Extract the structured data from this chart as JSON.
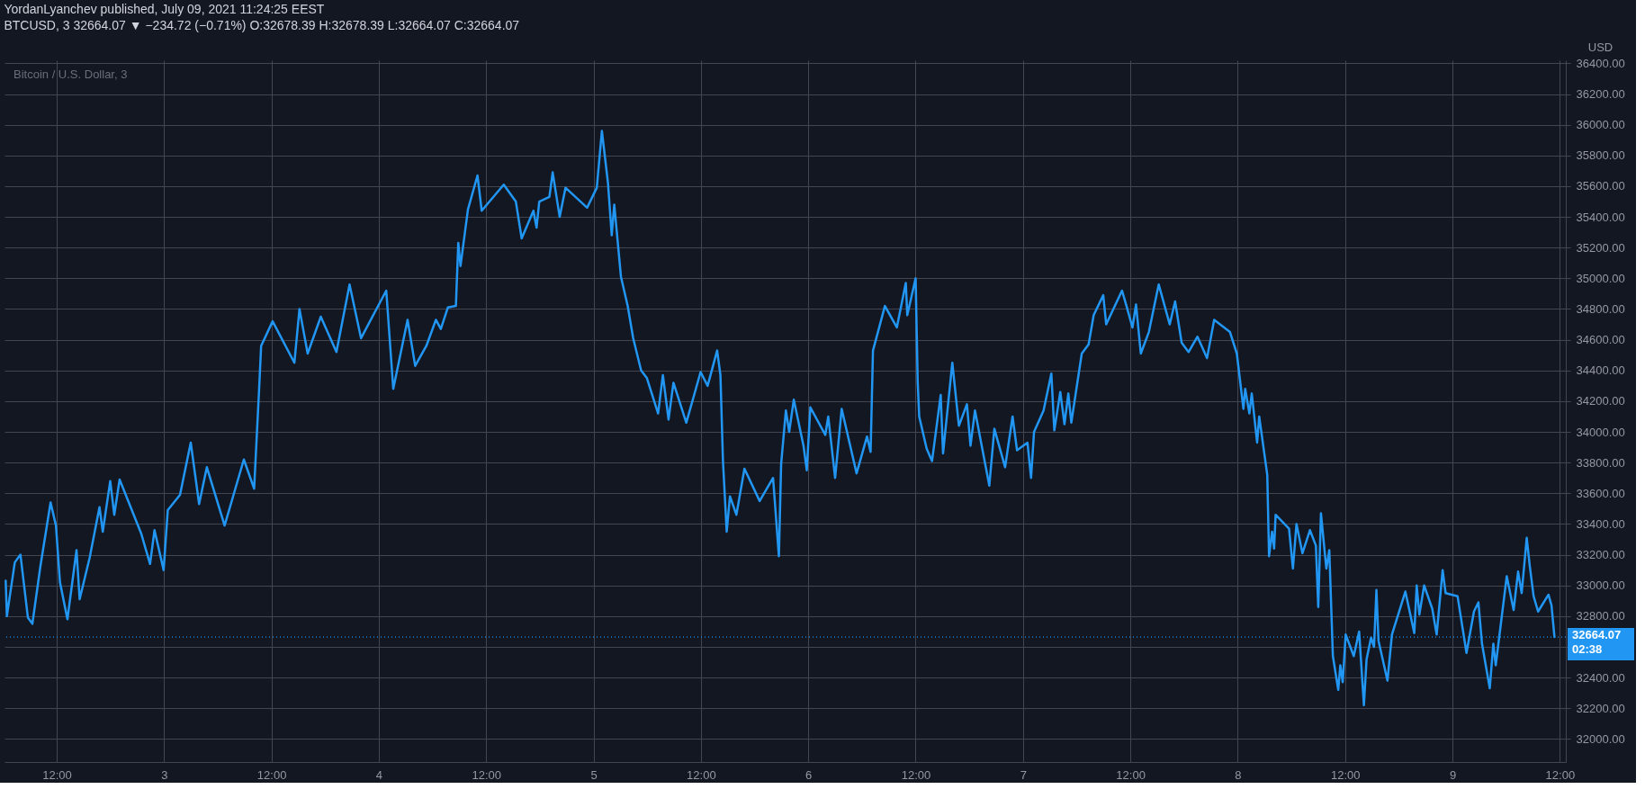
{
  "chart_data": {
    "type": "line",
    "title": "YordanLyanchev published, July 09, 2021 11:24:25 EEST",
    "subtitle": "BTCUSD, 3  32664.07 ▼ −234.72 (−0.71%) O:32678.39 H:32678.39 L:32664.07 C:32664.07",
    "annotations": [
      "Bitcoin / U.S. Dollar, 3"
    ],
    "ylabel": "USD",
    "x": [
      "2021-07-02T06:18",
      "2021-07-02T06:26",
      "2021-07-02T07:19",
      "2021-07-02T07:57",
      "2021-07-02T08:47",
      "2021-07-02T09:17",
      "2021-07-02T10:10",
      "2021-07-02T11:19",
      "2021-07-02T11:55",
      "2021-07-02T12:22",
      "2021-07-02T13:12",
      "2021-07-02T14:13",
      "2021-07-02T14:34",
      "2021-07-02T15:41",
      "2021-07-02T16:47",
      "2021-07-02T17:09",
      "2021-07-02T17:59",
      "2021-07-02T18:26",
      "2021-07-02T19:02",
      "2021-07-02T21:26",
      "2021-07-02T22:26",
      "2021-07-02T22:56",
      "2021-07-02T23:57",
      "2021-07-03T00:25",
      "2021-07-03T01:47",
      "2021-07-03T02:59",
      "2021-07-03T03:55",
      "2021-07-03T04:47",
      "2021-07-03T06:46",
      "2021-07-03T08:55",
      "2021-07-03T10:04",
      "2021-07-03T10:37",
      "2021-07-03T10:51",
      "2021-07-03T12:08",
      "2021-07-03T14:34",
      "2021-07-03T15:08",
      "2021-07-03T16:03",
      "2021-07-03T17:31",
      "2021-07-03T19:16",
      "2021-07-03T20:44",
      "2021-07-03T22:01",
      "2021-07-04T00:50",
      "2021-07-04T01:37",
      "2021-07-04T03:13",
      "2021-07-04T04:04",
      "2021-07-04T05:19",
      "2021-07-04T06:23",
      "2021-07-04T06:56",
      "2021-07-04T07:43",
      "2021-07-04T08:37",
      "2021-07-04T08:53",
      "2021-07-04T09:08",
      "2021-07-04T09:58",
      "2021-07-04T11:02",
      "2021-07-04T11:30",
      "2021-07-04T13:58",
      "2021-07-04T15:19",
      "2021-07-04T15:58",
      "2021-07-04T17:17",
      "2021-07-04T17:38",
      "2021-07-04T17:56",
      "2021-07-04T19:04",
      "2021-07-04T19:26",
      "2021-07-04T20:13",
      "2021-07-04T20:52",
      "2021-07-04T23:17",
      "2021-07-05T00:22",
      "2021-07-05T00:56",
      "2021-07-05T01:37",
      "2021-07-05T02:02",
      "2021-07-05T02:19",
      "2021-07-05T03:04",
      "2021-07-05T03:49",
      "2021-07-05T04:26",
      "2021-07-05T05:19",
      "2021-07-05T05:58",
      "2021-07-05T07:13",
      "2021-07-05T07:45",
      "2021-07-05T08:23",
      "2021-07-05T08:56",
      "2021-07-05T10:22",
      "2021-07-05T11:58",
      "2021-07-05T12:45",
      "2021-07-05T13:49",
      "2021-07-05T14:11",
      "2021-07-05T14:28",
      "2021-07-05T14:53",
      "2021-07-05T15:15",
      "2021-07-05T15:58",
      "2021-07-05T16:52",
      "2021-07-05T18:34",
      "2021-07-05T20:04",
      "2021-07-05T20:43",
      "2021-07-05T20:58",
      "2021-07-05T21:30",
      "2021-07-05T21:52",
      "2021-07-05T22:23",
      "2021-07-05T23:28",
      "2021-07-05T23:50",
      "2021-07-06T00:14",
      "2021-07-06T01:54",
      "2021-07-06T02:14",
      "2021-07-06T03:00",
      "2021-07-06T03:44",
      "2021-07-06T05:24",
      "2021-07-06T06:34",
      "2021-07-06T06:58",
      "2021-07-06T07:14",
      "2021-07-06T08:34",
      "2021-07-06T09:54",
      "2021-07-06T10:54",
      "2021-07-06T11:04",
      "2021-07-06T12:00",
      "2021-07-06T12:14",
      "2021-07-06T12:24",
      "2021-07-06T13:14",
      "2021-07-06T13:50",
      "2021-07-06T14:48",
      "2021-07-06T15:04",
      "2021-07-06T16:06",
      "2021-07-06T16:50",
      "2021-07-06T17:44",
      "2021-07-06T18:08",
      "2021-07-06T18:38",
      "2021-07-06T20:14",
      "2021-07-06T20:48",
      "2021-07-06T22:00",
      "2021-07-06T22:50",
      "2021-07-06T23:20",
      "2021-07-07T00:30",
      "2021-07-07T00:54",
      "2021-07-07T01:14",
      "2021-07-07T02:18",
      "2021-07-07T03:10",
      "2021-07-07T03:30",
      "2021-07-07T04:10",
      "2021-07-07T04:38",
      "2021-07-07T05:04",
      "2021-07-07T05:24",
      "2021-07-07T06:34",
      "2021-07-07T07:20",
      "2021-07-07T07:54",
      "2021-07-07T08:58",
      "2021-07-07T09:18",
      "2021-07-07T11:04",
      "2021-07-07T11:34",
      "2021-07-07T12:14",
      "2021-07-07T12:38",
      "2021-07-07T13:10",
      "2021-07-07T14:04",
      "2021-07-07T15:10",
      "2021-07-07T16:24",
      "2021-07-07T17:00",
      "2021-07-07T17:44",
      "2021-07-07T18:30",
      "2021-07-07T19:30",
      "2021-07-07T20:34",
      "2021-07-07T21:22",
      "2021-07-07T23:08",
      "2021-07-07T23:54",
      "2021-07-08T00:38",
      "2021-07-08T00:50",
      "2021-07-08T01:18",
      "2021-07-08T01:34",
      "2021-07-08T02:10",
      "2021-07-08T02:24",
      "2021-07-08T03:18",
      "2021-07-08T03:30",
      "2021-07-08T03:50",
      "2021-07-08T04:04",
      "2021-07-08T04:14",
      "2021-07-08T05:44",
      "2021-07-08T06:10",
      "2021-07-08T06:34",
      "2021-07-08T07:14",
      "2021-07-08T08:04",
      "2021-07-08T08:44",
      "2021-07-08T09:00",
      "2021-07-08T09:18",
      "2021-07-08T09:54",
      "2021-07-08T10:14",
      "2021-07-08T10:38",
      "2021-07-08T11:14",
      "2021-07-08T11:28",
      "2021-07-08T11:44",
      "2021-07-08T12:04",
      "2021-07-08T12:58",
      "2021-07-08T13:34",
      "2021-07-08T14:06",
      "2021-07-08T14:24",
      "2021-07-08T14:54",
      "2021-07-08T15:14",
      "2021-07-08T15:30",
      "2021-07-08T15:44",
      "2021-07-08T16:44",
      "2021-07-08T17:14",
      "2021-07-08T18:44",
      "2021-07-08T19:44",
      "2021-07-08T20:00",
      "2021-07-08T20:18",
      "2021-07-08T20:50",
      "2021-07-08T21:44",
      "2021-07-08T22:14",
      "2021-07-08T22:54",
      "2021-07-08T23:14",
      "2021-07-09T00:34",
      "2021-07-09T01:34",
      "2021-07-09T02:24",
      "2021-07-09T02:54",
      "2021-07-09T03:18",
      "2021-07-09T04:10",
      "2021-07-09T04:34",
      "2021-07-09T04:50",
      "2021-07-09T06:04",
      "2021-07-09T06:50",
      "2021-07-09T07:20",
      "2021-07-09T07:44",
      "2021-07-09T08:18",
      "2021-07-09T08:38",
      "2021-07-09T09:04",
      "2021-07-09T09:34",
      "2021-07-09T10:44",
      "2021-07-09T11:04",
      "2021-07-09T11:24"
    ],
    "series": [
      {
        "color": "#2196f3",
        "values": [
          33030,
          32800,
          33150,
          33200,
          32790,
          32750,
          33120,
          33540,
          33390,
          33020,
          32780,
          33230,
          32910,
          33180,
          33510,
          33350,
          33680,
          33460,
          33690,
          33340,
          33140,
          33360,
          33100,
          33490,
          33590,
          33930,
          33530,
          33770,
          33390,
          33820,
          33630,
          34270,
          34560,
          34720,
          34450,
          34800,
          34510,
          34750,
          34520,
          34960,
          34610,
          34920,
          34280,
          34730,
          34430,
          34560,
          34730,
          34670,
          34810,
          34820,
          35230,
          35080,
          35450,
          35670,
          35440,
          35610,
          35500,
          35260,
          35440,
          35330,
          35500,
          35530,
          35690,
          35400,
          35590,
          35460,
          35590,
          35960,
          35620,
          35280,
          35480,
          35010,
          34820,
          34610,
          34400,
          34350,
          34120,
          34370,
          34080,
          34320,
          34060,
          34390,
          34300,
          34530,
          34370,
          33810,
          33350,
          33580,
          33460,
          33760,
          33550,
          33700,
          33190,
          33790,
          34140,
          34000,
          34210,
          33910,
          33750,
          34160,
          33980,
          34100,
          33700,
          34150,
          33730,
          33970,
          33870,
          34530,
          34820,
          34680,
          34970,
          34760,
          35000,
          34320,
          34100,
          33890,
          33810,
          34240,
          33860,
          34450,
          34040,
          34180,
          33910,
          34140,
          33650,
          34020,
          33770,
          34100,
          33880,
          33930,
          33700,
          34000,
          34140,
          34380,
          34010,
          34260,
          34050,
          34250,
          34060,
          34510,
          34570,
          34760,
          34890,
          34700,
          34920,
          34820,
          34680,
          34830,
          34510,
          34650,
          34960,
          34700,
          34850,
          34580,
          34520,
          34620,
          34480,
          34730,
          34650,
          34510,
          34150,
          34280,
          34120,
          34250,
          33930,
          34100,
          33720,
          33190,
          33350,
          33240,
          33460,
          33370,
          33110,
          33400,
          33210,
          33360,
          33260,
          32860,
          33470,
          33110,
          33230,
          32540,
          32320,
          32480,
          32370,
          32680,
          32540,
          32700,
          32220,
          32520,
          32660,
          32600,
          32970,
          32640,
          32380,
          32680,
          32960,
          32690,
          33000,
          32810,
          33000,
          32850,
          32680,
          33100,
          32950,
          32930,
          32560,
          32830,
          32890,
          32620,
          32330,
          32620,
          32480,
          33060,
          32840,
          33090,
          32950,
          33310,
          33130,
          32930,
          32830,
          32940,
          32870,
          32664.07
        ]
      }
    ],
    "xlim": [
      "2021-07-02T06:10",
      "2021-07-09T12:40"
    ],
    "xticks": [
      {
        "value": "2021-07-02T12:00",
        "label": "12:00"
      },
      {
        "value": "2021-07-03",
        "label": "3"
      },
      {
        "value": "2021-07-03T12:00",
        "label": "12:00"
      },
      {
        "value": "2021-07-04",
        "label": "4"
      },
      {
        "value": "2021-07-04T12:00",
        "label": "12:00"
      },
      {
        "value": "2021-07-05",
        "label": "5"
      },
      {
        "value": "2021-07-05T12:00",
        "label": "12:00"
      },
      {
        "value": "2021-07-06",
        "label": "6"
      },
      {
        "value": "2021-07-06T12:00",
        "label": "12:00"
      },
      {
        "value": "2021-07-07",
        "label": "7"
      },
      {
        "value": "2021-07-07T12:00",
        "label": "12:00"
      },
      {
        "value": "2021-07-08",
        "label": "8"
      },
      {
        "value": "2021-07-08T12:00",
        "label": "12:00"
      },
      {
        "value": "2021-07-09",
        "label": "9"
      },
      {
        "value": "2021-07-09T12:00",
        "label": "12:00"
      }
    ],
    "ylim": [
      31850,
      36420
    ],
    "yticks": [
      {
        "value": 32000,
        "label": "32000.00"
      },
      {
        "value": 32200,
        "label": "32200.00"
      },
      {
        "value": 32400,
        "label": "32400.00"
      },
      {
        "value": 32600,
        "label": null
      },
      {
        "value": 32800,
        "label": "32800.00"
      },
      {
        "value": 33000,
        "label": "33000.00"
      },
      {
        "value": 33200,
        "label": "33200.00"
      },
      {
        "value": 33400,
        "label": "33400.00"
      },
      {
        "value": 33600,
        "label": "33600.00"
      },
      {
        "value": 33800,
        "label": "33800.00"
      },
      {
        "value": 34000,
        "label": "34000.00"
      },
      {
        "value": 34200,
        "label": "34200.00"
      },
      {
        "value": 34400,
        "label": "34400.00"
      },
      {
        "value": 34600,
        "label": "34600.00"
      },
      {
        "value": 34800,
        "label": "34800.00"
      },
      {
        "value": 35000,
        "label": "35000.00"
      },
      {
        "value": 35200,
        "label": "35200.00"
      },
      {
        "value": 35400,
        "label": "35400.00"
      },
      {
        "value": 35600,
        "label": "35600.00"
      },
      {
        "value": 35800,
        "label": "35800.00"
      },
      {
        "value": 36000,
        "label": "36000.00"
      },
      {
        "value": 36200,
        "label": "36200.00"
      },
      {
        "value": 36400,
        "label": "36400.00"
      }
    ],
    "grid": true,
    "ref_lines": [
      {
        "axis": "y",
        "value": 32664.07,
        "label": "32664.07\n02:38",
        "color": "#2196f3",
        "line_style": "dotted"
      }
    ]
  }
}
